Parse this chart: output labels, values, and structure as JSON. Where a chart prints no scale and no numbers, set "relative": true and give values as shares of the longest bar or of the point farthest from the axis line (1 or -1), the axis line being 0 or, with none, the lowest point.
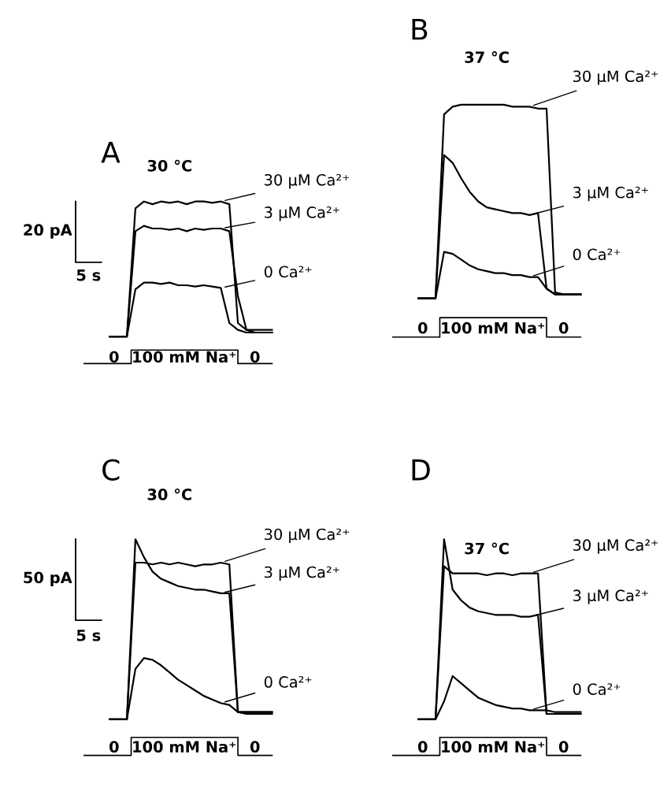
{
  "chart_data": [
    {
      "type": "line",
      "title": "A",
      "relative": true,
      "categories": [
        null,
        null,
        null,
        null,
        null,
        null,
        null,
        null,
        null,
        null,
        null,
        null,
        null,
        null,
        null,
        null,
        null,
        null,
        null,
        null
      ],
      "annotations": [
        "20 pA",
        "5 s",
        "30 °C",
        "0",
        "100 mM Na⁺",
        "0"
      ],
      "series": [
        {
          "name": "30 μM Ca²⁺",
          "color": "#000000",
          "values": [
            0,
            0,
            0,
            0.95,
            1,
            0.98,
            1,
            0.99,
            1,
            0.98,
            1,
            1,
            0.99,
            1,
            0.98,
            0.1,
            0.05,
            0.05,
            0.05,
            0.05
          ]
        },
        {
          "name": "3 μM Ca²⁺",
          "color": "#000000",
          "values": [
            0,
            0,
            0,
            0.78,
            0.82,
            0.8,
            0.8,
            0.79,
            0.8,
            0.78,
            0.8,
            0.79,
            0.8,
            0.8,
            0.78,
            0.3,
            0.05,
            0.03,
            0.03,
            0.03
          ]
        },
        {
          "name": "0 Ca²⁺",
          "color": "#000000",
          "values": [
            0,
            0,
            0,
            0.35,
            0.4,
            0.4,
            0.39,
            0.4,
            0.38,
            0.38,
            0.37,
            0.38,
            0.37,
            0.36,
            0.1,
            0.05,
            0.03,
            0.03,
            0.03,
            0.03
          ]
        }
      ]
    },
    {
      "type": "line",
      "title": "B",
      "relative": true,
      "categories": [
        null,
        null,
        null,
        null,
        null,
        null,
        null,
        null,
        null,
        null,
        null,
        null,
        null,
        null,
        null,
        null,
        null,
        null,
        null,
        null
      ],
      "annotations": [
        "37 °C",
        "0",
        "100 mM Na⁺",
        "0"
      ],
      "series": [
        {
          "name": "30 μM Ca²⁺",
          "color": "#000000",
          "values": [
            0,
            0,
            0,
            0.95,
            0.99,
            1,
            1,
            1,
            1,
            1,
            1,
            0.99,
            0.99,
            0.99,
            0.98,
            0.98,
            0.03,
            0.02,
            0.02,
            0.02
          ]
        },
        {
          "name": "3 μM Ca²⁺",
          "color": "#000000",
          "values": [
            0,
            0,
            0,
            0.74,
            0.7,
            0.62,
            0.55,
            0.5,
            0.47,
            0.46,
            0.45,
            0.44,
            0.44,
            0.43,
            0.44,
            0.05,
            0.02,
            0.02,
            0.02,
            0.02
          ]
        },
        {
          "name": "0 Ca²⁺",
          "color": "#000000",
          "values": [
            0,
            0,
            0,
            0.24,
            0.23,
            0.2,
            0.17,
            0.15,
            0.14,
            0.13,
            0.13,
            0.12,
            0.12,
            0.11,
            0.11,
            0.05,
            0.02,
            0.02,
            0.02,
            0.02
          ]
        }
      ]
    },
    {
      "type": "line",
      "title": "C",
      "relative": true,
      "categories": [
        null,
        null,
        null,
        null,
        null,
        null,
        null,
        null,
        null,
        null,
        null,
        null,
        null,
        null,
        null,
        null,
        null,
        null,
        null,
        null
      ],
      "annotations": [
        "50 pA",
        "5 s",
        "30 °C",
        "0",
        "100 mM Na⁺",
        "0"
      ],
      "series": [
        {
          "name": "30 μM Ca²⁺",
          "color": "#000000",
          "values": [
            0,
            0,
            0,
            0.87,
            0.87,
            0.86,
            0.87,
            0.86,
            0.87,
            0.86,
            0.85,
            0.86,
            0.86,
            0.87,
            0.86,
            0.04,
            0.04,
            0.04,
            0.04,
            0.04
          ]
        },
        {
          "name": "3 μM Ca²⁺",
          "color": "#000000",
          "values": [
            0,
            0,
            0,
            1,
            0.9,
            0.82,
            0.78,
            0.76,
            0.74,
            0.73,
            0.72,
            0.72,
            0.71,
            0.7,
            0.7,
            0.04,
            0.04,
            0.04,
            0.04,
            0.04
          ]
        },
        {
          "name": "0 Ca²⁺",
          "color": "#000000",
          "values": [
            0,
            0,
            0,
            0.28,
            0.34,
            0.33,
            0.3,
            0.26,
            0.22,
            0.19,
            0.16,
            0.13,
            0.11,
            0.09,
            0.08,
            0.04,
            0.03,
            0.03,
            0.03,
            0.03
          ]
        }
      ]
    },
    {
      "type": "line",
      "title": "D",
      "relative": true,
      "categories": [
        null,
        null,
        null,
        null,
        null,
        null,
        null,
        null,
        null,
        null,
        null,
        null,
        null,
        null,
        null,
        null,
        null,
        null,
        null,
        null
      ],
      "annotations": [
        "37 °C",
        "0",
        "100 mM Na⁺",
        "0"
      ],
      "series": [
        {
          "name": "30 μM Ca²⁺",
          "color": "#000000",
          "values": [
            0,
            0,
            0,
            0.85,
            0.81,
            0.81,
            0.81,
            0.81,
            0.8,
            0.81,
            0.81,
            0.8,
            0.81,
            0.81,
            0.81,
            0.03,
            0.03,
            0.03,
            0.03,
            0.03
          ]
        },
        {
          "name": "3 μM Ca²⁺",
          "color": "#000000",
          "values": [
            0,
            0,
            0,
            1,
            0.72,
            0.66,
            0.62,
            0.6,
            0.59,
            0.58,
            0.58,
            0.58,
            0.57,
            0.57,
            0.58,
            0.03,
            0.03,
            0.03,
            0.03,
            0.03
          ]
        },
        {
          "name": "0 Ca²⁺",
          "color": "#000000",
          "values": [
            0,
            0,
            0,
            0.1,
            0.24,
            0.2,
            0.16,
            0.12,
            0.1,
            0.08,
            0.07,
            0.06,
            0.06,
            0.05,
            0.05,
            0.05,
            0.04,
            0.04,
            0.04,
            0.04
          ]
        }
      ]
    }
  ]
}
